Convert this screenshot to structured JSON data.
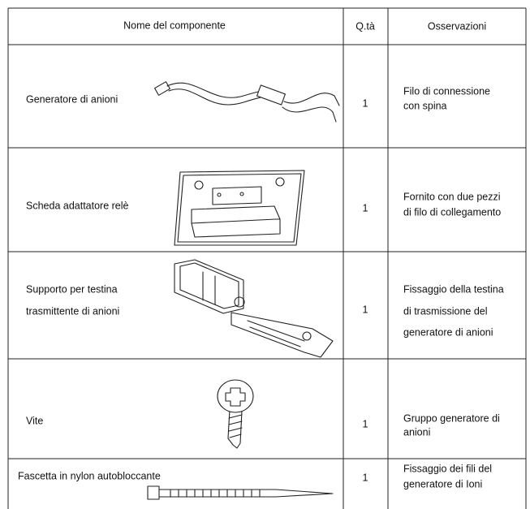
{
  "table": {
    "header": [
      "Nome del componente",
      "Q.tà",
      "Osservazioni"
    ],
    "rows": [
      {
        "name": [
          "Generatore di anioni"
        ],
        "qty": 1,
        "notes": [
          "Filo di connessione",
          "con spina"
        ]
      },
      {
        "name": [
          "Scheda adattatore relè"
        ],
        "qty": 1,
        "notes": [
          "Fornito con due pezzi",
          "di filo di collegamento"
        ]
      },
      {
        "name": [
          "Supporto per testina",
          "trasmittente di anioni"
        ],
        "qty": 1,
        "notes": [
          "Fissaggio della testina",
          "di trasmissione del",
          "generatore di anioni"
        ]
      },
      {
        "name": [
          "Vite"
        ],
        "qty": 1,
        "notes": [
          "Gruppo generatore di",
          "anioni"
        ]
      },
      {
        "name": [
          "Fascetta in nylon autobloccante"
        ],
        "qty": 1,
        "notes": [
          "Fissaggio dei fili del",
          "generatore di Ioni"
        ]
      }
    ]
  }
}
